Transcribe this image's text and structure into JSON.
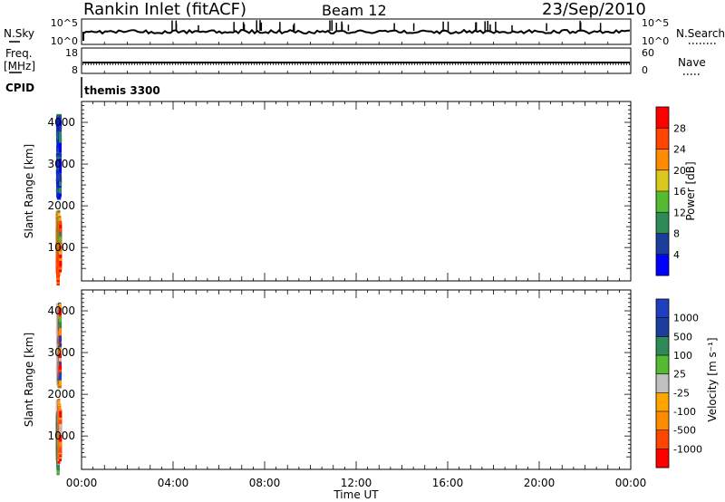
{
  "header": {
    "title": "Rankin Inlet (fitACF)",
    "beam": "Beam 12",
    "date": "23/Sep/2010"
  },
  "top_panels": {
    "nsky": {
      "label": "N.Sky",
      "right_label": "N.Search",
      "ticks_left": [
        "10^5",
        "10^0"
      ],
      "ticks_right": [
        "10^5",
        "10^0"
      ]
    },
    "freq": {
      "label_line1": "Freq.",
      "label_line2": "[MHz]",
      "right_label": "Nave",
      "ticks_left": [
        "18",
        "8"
      ],
      "ticks_right": [
        "60",
        "0"
      ]
    },
    "cpid": {
      "label": "CPID",
      "value": "themis 3300"
    }
  },
  "colors": {
    "power_scale": [
      "#0000ff",
      "#1c3d9c",
      "#2e8b57",
      "#55bb33",
      "#d9c81e",
      "#ff8c00",
      "#ff4500",
      "#ff0000"
    ],
    "velocity_scale": [
      "#ff0000",
      "#ff4500",
      "#ff8c00",
      "#ffa500",
      "#c0c0c0",
      "#55bb33",
      "#2e8b57",
      "#1c3d9c",
      "#1f3fbf"
    ]
  },
  "chart_data": [
    {
      "type": "heatmap",
      "name": "power-panel",
      "xlabel": "Time UT",
      "ylabel": "Slant Range [km]",
      "xlim": [
        0,
        24
      ],
      "ylim": [
        200,
        4500
      ],
      "x_ticks": [
        "00:00",
        "04:00",
        "08:00",
        "12:00",
        "16:00",
        "20:00",
        "00:00"
      ],
      "y_ticks": [
        "1000",
        "2000",
        "3000",
        "4000"
      ],
      "colorbar": {
        "label": "Power [dB]",
        "tick_labels": [
          "4",
          "8",
          "12",
          "16",
          "20",
          "24",
          "28"
        ]
      }
    },
    {
      "type": "heatmap",
      "name": "velocity-panel",
      "xlabel": "Time UT",
      "ylabel": "Slant Range [km]",
      "xlim": [
        0,
        24
      ],
      "ylim": [
        200,
        4500
      ],
      "x_ticks": [
        "00:00",
        "04:00",
        "08:00",
        "12:00",
        "16:00",
        "20:00",
        "00:00"
      ],
      "y_ticks": [
        "1000",
        "2000",
        "3000",
        "4000"
      ],
      "colorbar": {
        "label": "Velocity [m s⁻¹]",
        "tick_labels": [
          "1000",
          "500",
          "100",
          "25",
          "-25",
          "-100",
          "-500",
          "-1000"
        ]
      }
    }
  ]
}
